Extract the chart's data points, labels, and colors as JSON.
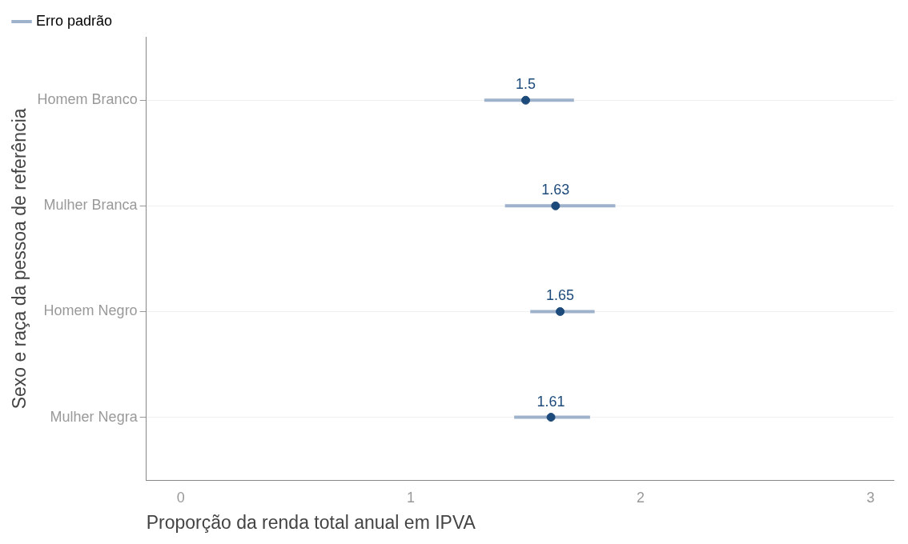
{
  "chart_data": {
    "type": "scatter",
    "orientation": "horizontal",
    "xlabel": "Proporção da renda total anual em IPVA",
    "ylabel": "Sexo e raça da pessoa de referência",
    "categories": [
      "Homem Branco",
      "Mulher Branca",
      "Homem Negro",
      "Mulher Negra"
    ],
    "series": [
      {
        "name": "Erro padrão",
        "color": "#9fb2cc",
        "colors": [
          "#1c4a7a",
          "#1c4a7a",
          "#1c4a7a",
          "#1c4a7a"
        ],
        "values": [
          1.5,
          1.63,
          1.65,
          1.61
        ],
        "errors": [
          [
            1.32,
            1.71
          ],
          [
            1.41,
            1.89
          ],
          [
            1.52,
            1.8
          ],
          [
            1.45,
            1.78
          ]
        ]
      }
    ],
    "xlim": [
      -0.15,
      3.1
    ],
    "xticks": [
      0,
      1,
      2,
      3
    ],
    "grid": "y",
    "legend": "top left",
    "data_labels": true,
    "marker": "circle"
  }
}
